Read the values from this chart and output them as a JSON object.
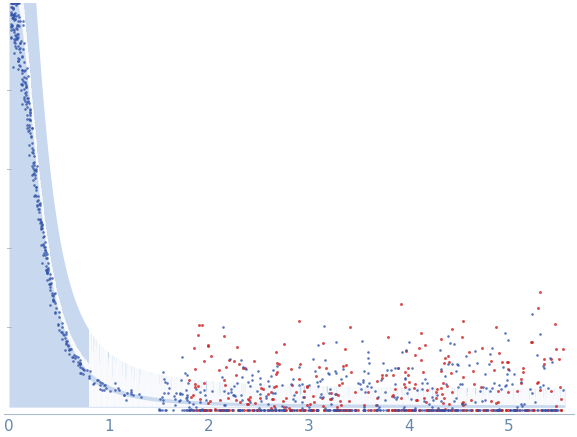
{
  "title": "",
  "xlabel": "",
  "ylabel": "",
  "xlim": [
    -0.05,
    5.65
  ],
  "ylim": [
    -0.02,
    1.02
  ],
  "xticks": [
    0,
    1,
    2,
    3,
    4,
    5
  ],
  "background_color": "#ffffff",
  "error_band_color": "#c8d8ee",
  "error_line_color": "#c0cfe8",
  "scatter_blue_color": "#3355aa",
  "scatter_red_color": "#cc2222",
  "scatter_blue_alpha": 0.8,
  "scatter_red_alpha": 0.8,
  "seed": 42
}
